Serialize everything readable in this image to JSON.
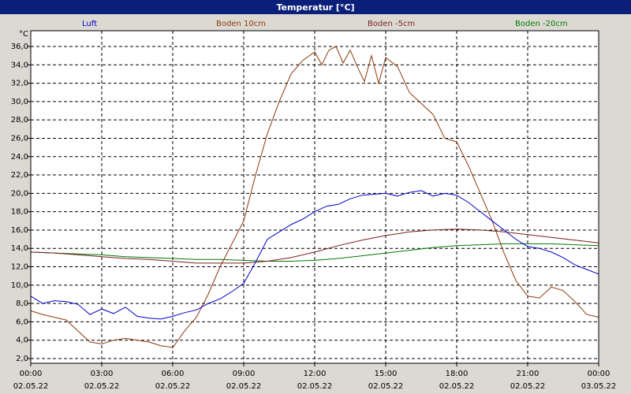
{
  "header": {
    "title": "Temperatur [°C]",
    "unit": "°C"
  },
  "legend": [
    {
      "name": "Luft",
      "color": "#0000cc"
    },
    {
      "name": "Boden 10cm",
      "color": "#8b3a0a"
    },
    {
      "name": "Boden -5cm",
      "color": "#7a1e1e"
    },
    {
      "name": "Boden -20cm",
      "color": "#007a00"
    }
  ],
  "chart_data": {
    "type": "line",
    "title": "Temperatur [°C]",
    "ylabel": "°C",
    "ylim": [
      2,
      36
    ],
    "yticks": [
      "2,0",
      "4,0",
      "6,0",
      "8,0",
      "10,0",
      "12,0",
      "14,0",
      "16,0",
      "18,0",
      "20,0",
      "22,0",
      "24,0",
      "26,0",
      "28,0",
      "30,0",
      "32,0",
      "34,0",
      "36,0"
    ],
    "xlim": [
      0,
      24
    ],
    "xticks": [
      {
        "time": "00:00",
        "date": "02.05.22"
      },
      {
        "time": "03:00",
        "date": "02.05.22"
      },
      {
        "time": "06:00",
        "date": "02.05.22"
      },
      {
        "time": "09:00",
        "date": "02.05.22"
      },
      {
        "time": "12:00",
        "date": "02.05.22"
      },
      {
        "time": "15:00",
        "date": "02.05.22"
      },
      {
        "time": "18:00",
        "date": "02.05.22"
      },
      {
        "time": "21:00",
        "date": "02.05.22"
      },
      {
        "time": "00:00",
        "date": "03.05.22"
      }
    ],
    "grid": true,
    "legend_position": "top",
    "series": [
      {
        "name": "Luft",
        "color": "#0000cc",
        "x": [
          0,
          0.5,
          1,
          1.5,
          2,
          2.5,
          3,
          3.5,
          4,
          4.5,
          5,
          5.5,
          6,
          6.5,
          7,
          7.5,
          8,
          8.5,
          9,
          9.5,
          10,
          10.5,
          11,
          11.5,
          12,
          12.5,
          13,
          13.5,
          14,
          14.5,
          15,
          15.5,
          16,
          16.5,
          17,
          17.5,
          18,
          18.5,
          19,
          19.5,
          20,
          20.5,
          21,
          21.5,
          22,
          22.5,
          23,
          23.5,
          24
        ],
        "y": [
          8.8,
          8.0,
          8.3,
          8.2,
          7.9,
          6.8,
          7.4,
          6.9,
          7.6,
          6.6,
          6.4,
          6.3,
          6.6,
          7.0,
          7.3,
          8.0,
          8.5,
          9.3,
          10.2,
          12.5,
          15.0,
          15.8,
          16.6,
          17.2,
          18.0,
          18.6,
          18.8,
          19.4,
          19.8,
          19.9,
          20.0,
          19.7,
          20.1,
          20.3,
          19.7,
          20.0,
          19.8,
          19.0,
          18.0,
          17.0,
          16.0,
          15.0,
          14.2,
          14.0,
          13.6,
          13.0,
          12.2,
          11.7,
          11.2
        ]
      },
      {
        "name": "Boden 10cm",
        "color": "#8b3a0a",
        "x": [
          0,
          0.5,
          1,
          1.5,
          2,
          2.5,
          3,
          3.5,
          4,
          4.5,
          5,
          5.5,
          6,
          6.5,
          7,
          7.5,
          8,
          8.5,
          9,
          9.5,
          10,
          10.5,
          11,
          11.5,
          12,
          12.3,
          12.6,
          12.9,
          13.2,
          13.5,
          13.8,
          14.1,
          14.4,
          14.7,
          15,
          15.5,
          16,
          16.5,
          17,
          17.5,
          18,
          18.5,
          19,
          19.5,
          20,
          20.5,
          21,
          21.5,
          22,
          22.5,
          23,
          23.5,
          24
        ],
        "y": [
          7.2,
          6.8,
          6.5,
          6.2,
          5.0,
          3.8,
          3.6,
          4.0,
          4.2,
          4.0,
          3.8,
          3.4,
          3.2,
          5.0,
          6.5,
          9.0,
          12.0,
          14.5,
          17.0,
          22.0,
          26.5,
          30.0,
          33.0,
          34.5,
          35.4,
          34.0,
          35.6,
          36.0,
          34.2,
          35.6,
          33.8,
          32.2,
          35.0,
          32.0,
          34.8,
          33.8,
          31.0,
          29.8,
          28.6,
          26.0,
          25.6,
          23.0,
          20.0,
          17.0,
          13.5,
          10.5,
          8.8,
          8.6,
          9.8,
          9.4,
          8.2,
          6.8,
          6.5
        ]
      },
      {
        "name": "Boden -5cm",
        "color": "#7a1e1e",
        "x": [
          0,
          1,
          2,
          3,
          4,
          5,
          6,
          7,
          8,
          9,
          10,
          11,
          12,
          13,
          14,
          15,
          16,
          17,
          18,
          19,
          20,
          21,
          22,
          23,
          24
        ],
        "y": [
          13.6,
          13.5,
          13.3,
          13.1,
          12.9,
          12.8,
          12.6,
          12.4,
          12.4,
          12.4,
          12.6,
          13.0,
          13.6,
          14.3,
          14.9,
          15.4,
          15.8,
          16.0,
          16.1,
          16.0,
          15.8,
          15.5,
          15.2,
          14.9,
          14.6
        ]
      },
      {
        "name": "Boden -20cm",
        "color": "#007a00",
        "x": [
          0,
          1,
          2,
          3,
          4,
          5,
          6,
          7,
          8,
          9,
          10,
          11,
          12,
          13,
          14,
          15,
          16,
          17,
          18,
          19,
          20,
          21,
          22,
          23,
          24
        ],
        "y": [
          13.6,
          13.5,
          13.4,
          13.3,
          13.1,
          13.0,
          12.9,
          12.8,
          12.8,
          12.7,
          12.6,
          12.6,
          12.7,
          12.9,
          13.2,
          13.5,
          13.8,
          14.1,
          14.3,
          14.4,
          14.5,
          14.5,
          14.5,
          14.4,
          14.3
        ]
      }
    ]
  }
}
